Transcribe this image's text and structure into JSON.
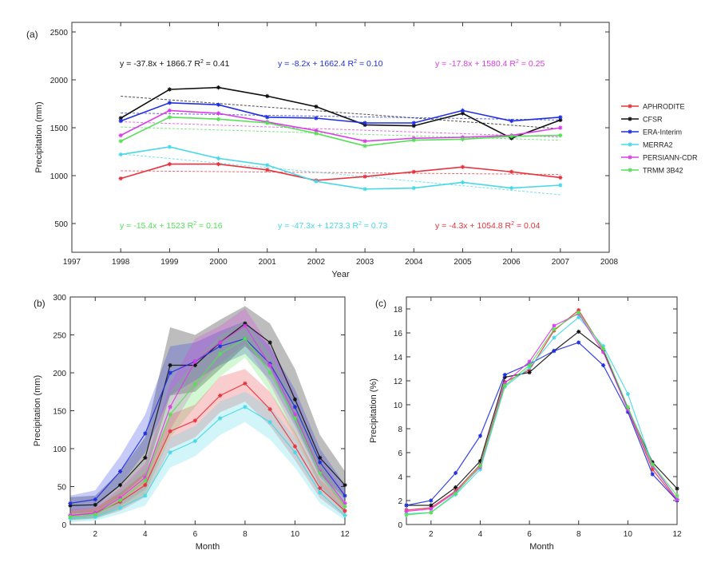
{
  "chart_data": [
    {
      "id": "a",
      "type": "line",
      "panel_label": "(a)",
      "xlabel": "Year",
      "ylabel": "Precipitation (mm)",
      "xlim": [
        1997,
        2008
      ],
      "ylim": [
        200,
        2600
      ],
      "xticks": [
        1997,
        1998,
        1999,
        2000,
        2001,
        2002,
        2003,
        2004,
        2005,
        2006,
        2007,
        2008
      ],
      "yticks": [
        500,
        1000,
        1500,
        2000,
        2500
      ],
      "x": [
        1998,
        1999,
        2000,
        2001,
        2002,
        2003,
        2004,
        2005,
        2006,
        2007
      ],
      "legend": {
        "placement": "right-outside",
        "entries": [
          "APHRODITE",
          "CFSR",
          "ERA-Interim",
          "MERRA2",
          "PERSIANN-CDR",
          "TRMM 3B42"
        ]
      },
      "series": [
        {
          "name": "APHRODITE",
          "color": "#e8323c",
          "values": [
            970,
            1120,
            1120,
            1060,
            950,
            990,
            1040,
            1090,
            1040,
            980
          ],
          "trend": {
            "slope": -4.3,
            "intercept": 1054.8
          }
        },
        {
          "name": "CFSR",
          "color": "#111111",
          "values": [
            1600,
            1900,
            1920,
            1830,
            1720,
            1530,
            1520,
            1650,
            1390,
            1580
          ],
          "trend": {
            "slope": -37.8,
            "intercept": 1866.7
          }
        },
        {
          "name": "ERA-Interim",
          "color": "#1f2fe0",
          "values": [
            1570,
            1760,
            1740,
            1610,
            1600,
            1550,
            1550,
            1680,
            1570,
            1610
          ],
          "trend": {
            "slope": -8.2,
            "intercept": 1662.4
          }
        },
        {
          "name": "MERRA2",
          "color": "#48d8e8",
          "values": [
            1220,
            1300,
            1180,
            1110,
            940,
            860,
            870,
            930,
            870,
            900
          ],
          "trend": {
            "slope": -47.3,
            "intercept": 1273.3
          }
        },
        {
          "name": "PERSIANN-CDR",
          "color": "#dc3ce8",
          "values": [
            1420,
            1680,
            1650,
            1560,
            1470,
            1360,
            1390,
            1400,
            1420,
            1500
          ],
          "trend": {
            "slope": -17.8,
            "intercept": 1580.4
          }
        },
        {
          "name": "TRMM 3B42",
          "color": "#55e055",
          "values": [
            1360,
            1610,
            1590,
            1550,
            1440,
            1310,
            1370,
            1380,
            1410,
            1420
          ],
          "trend": {
            "slope": -15.4,
            "intercept": 1523
          }
        }
      ],
      "annotations": [
        {
          "text": "y = -37.8x + 1866.7 R",
          "sup": "2",
          "tail": " = 0.41",
          "color": "#111111"
        },
        {
          "text": "y = -8.2x + 1662.4 R",
          "sup": "2",
          "tail": " = 0.10",
          "color": "#1f2fe0"
        },
        {
          "text": "y = -17.8x + 1580.4 R",
          "sup": "2",
          "tail": " = 0.25",
          "color": "#dc3ce8"
        },
        {
          "text": "y = -15.4x + 1523 R",
          "sup": "2",
          "tail": " = 0.16",
          "color": "#55e055"
        },
        {
          "text": "y = -47.3x + 1273.3 R",
          "sup": "2",
          "tail": " = 0.73",
          "color": "#48d8e8"
        },
        {
          "text": "y = -4.3x + 1054.8 R",
          "sup": "2",
          "tail": " = 0.04",
          "color": "#e8323c"
        }
      ]
    },
    {
      "id": "b",
      "type": "line",
      "panel_label": "(b)",
      "xlabel": "Month",
      "ylabel": "Precipitation (mm)",
      "xlim": [
        1,
        12
      ],
      "ylim": [
        0,
        300
      ],
      "xticks": [
        2,
        4,
        6,
        8,
        10,
        12
      ],
      "yticks": [
        0,
        50,
        100,
        150,
        200,
        250,
        300
      ],
      "x": [
        1,
        2,
        3,
        4,
        5,
        6,
        7,
        8,
        9,
        10,
        11,
        12
      ],
      "bands": "shaded ranges around each series",
      "series": [
        {
          "name": "APHRODITE",
          "color": "#e8323c",
          "values": [
            12,
            15,
            30,
            52,
            123,
            137,
            170,
            186,
            152,
            103,
            48,
            18
          ],
          "lower": [
            6,
            8,
            18,
            36,
            100,
            115,
            148,
            162,
            130,
            85,
            35,
            10
          ],
          "upper": [
            18,
            22,
            42,
            68,
            145,
            158,
            195,
            205,
            175,
            122,
            60,
            28
          ]
        },
        {
          "name": "CFSR",
          "color": "#111111",
          "values": [
            25,
            26,
            52,
            88,
            210,
            210,
            240,
            265,
            240,
            165,
            88,
            52
          ],
          "lower": [
            14,
            16,
            36,
            65,
            170,
            175,
            205,
            235,
            205,
            135,
            65,
            35
          ],
          "upper": [
            36,
            38,
            70,
            115,
            260,
            250,
            270,
            288,
            265,
            205,
            118,
            70
          ]
        },
        {
          "name": "ERA-Interim",
          "color": "#1f2fe0",
          "values": [
            28,
            33,
            70,
            120,
            200,
            215,
            235,
            245,
            212,
            155,
            82,
            38
          ],
          "lower": [
            18,
            22,
            52,
            95,
            170,
            190,
            210,
            225,
            190,
            130,
            62,
            25
          ],
          "upper": [
            38,
            45,
            90,
            145,
            235,
            240,
            255,
            268,
            235,
            178,
            100,
            52
          ]
        },
        {
          "name": "MERRA2",
          "color": "#48d8e8",
          "values": [
            8,
            10,
            22,
            38,
            95,
            110,
            140,
            155,
            135,
            95,
            42,
            12
          ],
          "lower": [
            3,
            5,
            14,
            25,
            75,
            90,
            118,
            135,
            112,
            75,
            28,
            6
          ],
          "upper": [
            14,
            16,
            32,
            52,
            115,
            130,
            162,
            175,
            155,
            115,
            56,
            20
          ]
        },
        {
          "name": "PERSIANN-CDR",
          "color": "#dc3ce8",
          "values": [
            12,
            15,
            35,
            62,
            155,
            215,
            240,
            262,
            210,
            145,
            70,
            28
          ],
          "lower": [
            6,
            9,
            24,
            46,
            125,
            180,
            212,
            238,
            185,
            120,
            52,
            16
          ],
          "upper": [
            20,
            22,
            48,
            80,
            185,
            245,
            262,
            285,
            235,
            170,
            88,
            40
          ]
        },
        {
          "name": "TRMM 3B42",
          "color": "#55e055",
          "values": [
            10,
            13,
            32,
            58,
            145,
            185,
            225,
            245,
            200,
            140,
            68,
            24
          ],
          "lower": [
            5,
            7,
            20,
            40,
            115,
            155,
            195,
            220,
            175,
            115,
            50,
            14
          ],
          "upper": [
            17,
            20,
            45,
            76,
            175,
            215,
            250,
            268,
            225,
            165,
            86,
            36
          ]
        }
      ]
    },
    {
      "id": "c",
      "type": "line",
      "panel_label": "(c)",
      "xlabel": "Month",
      "ylabel": "Precipitation (%)",
      "xlim": [
        1,
        12
      ],
      "ylim": [
        0,
        19
      ],
      "xticks": [
        2,
        4,
        6,
        8,
        10,
        12
      ],
      "yticks": [
        0,
        2,
        4,
        6,
        8,
        10,
        12,
        14,
        16,
        18
      ],
      "x": [
        1,
        2,
        3,
        4,
        5,
        6,
        7,
        8,
        9,
        10,
        11,
        12
      ],
      "series": [
        {
          "name": "APHRODITE",
          "color": "#e8323c",
          "values": [
            1.2,
            1.4,
            2.8,
            5.0,
            11.9,
            12.9,
            16.2,
            17.9,
            14.6,
            9.6,
            4.6,
            2.0
          ]
        },
        {
          "name": "CFSR",
          "color": "#111111",
          "values": [
            1.6,
            1.6,
            3.1,
            5.3,
            12.3,
            12.7,
            14.5,
            16.1,
            14.5,
            9.7,
            5.2,
            3.0
          ]
        },
        {
          "name": "ERA-Interim",
          "color": "#1f2fe0",
          "values": [
            1.6,
            2.0,
            4.3,
            7.4,
            12.5,
            13.4,
            14.5,
            15.2,
            13.3,
            9.4,
            4.2,
            2.0
          ]
        },
        {
          "name": "MERRA2",
          "color": "#48d8e8",
          "values": [
            0.9,
            1.0,
            2.5,
            4.6,
            11.5,
            13.1,
            15.6,
            17.3,
            14.9,
            10.9,
            5.0,
            2.1
          ]
        },
        {
          "name": "PERSIANN-CDR",
          "color": "#dc3ce8",
          "values": [
            1.1,
            1.3,
            2.7,
            4.8,
            11.8,
            13.6,
            16.6,
            17.6,
            14.4,
            9.6,
            4.9,
            2.1
          ]
        },
        {
          "name": "TRMM 3B42",
          "color": "#55e055",
          "values": [
            0.8,
            1.0,
            2.6,
            4.9,
            11.6,
            13.3,
            16.3,
            17.7,
            14.7,
            9.8,
            5.0,
            2.4
          ]
        }
      ]
    }
  ]
}
